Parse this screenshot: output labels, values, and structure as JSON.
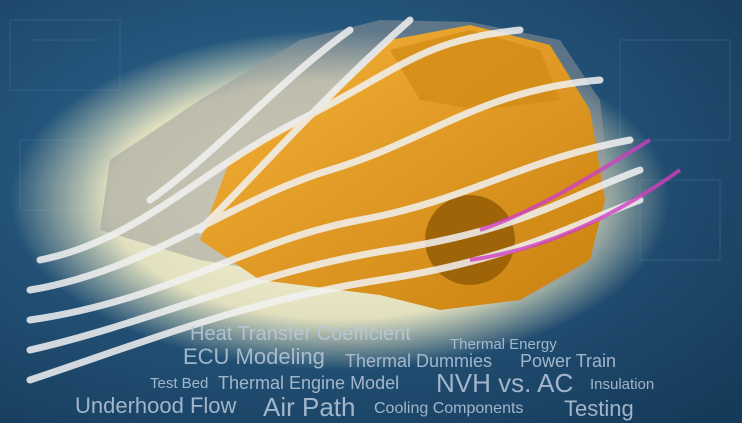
{
  "word_cloud": {
    "words": [
      "Heat Transfer Coefficient",
      "Thermal Energy",
      "ECU Modeling",
      "Thermal Dummies",
      "Power Train",
      "Test Bed",
      "Thermal Engine Model",
      "NVH vs. AC",
      "Insulation",
      "Underhood Flow",
      "Air Path",
      "Cooling Components",
      "Testing"
    ]
  }
}
